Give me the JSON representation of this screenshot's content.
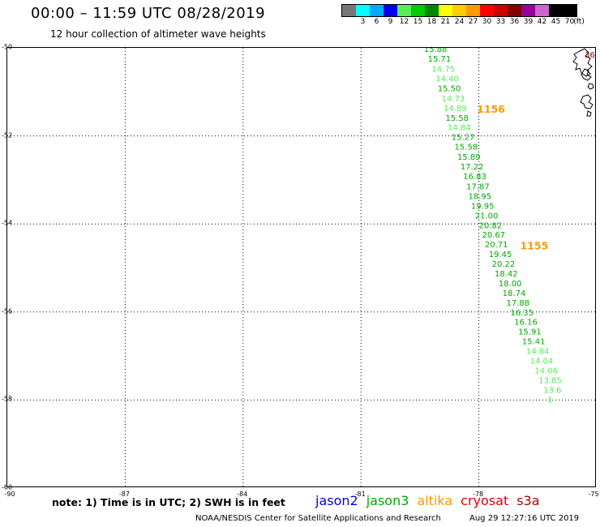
{
  "header": {
    "title": "00:00 – 11:59 UTC 08/28/2019",
    "subtitle": "12 hour collection of altimeter wave heights"
  },
  "legend": {
    "unit": "(ft)",
    "items": [
      {
        "label": "",
        "color": "#777777"
      },
      {
        "label": "3",
        "color": "#00ffff"
      },
      {
        "label": "6",
        "color": "#00aaff"
      },
      {
        "label": "9",
        "color": "#0000ee"
      },
      {
        "label": "12",
        "color": "#55ee55"
      },
      {
        "label": "15",
        "color": "#00cc00"
      },
      {
        "label": "18",
        "color": "#008800"
      },
      {
        "label": "21",
        "color": "#ffff00"
      },
      {
        "label": "24",
        "color": "#ffcc00"
      },
      {
        "label": "27",
        "color": "#ff9900"
      },
      {
        "label": "30",
        "color": "#ff0000"
      },
      {
        "label": "33",
        "color": "#cc0000"
      },
      {
        "label": "36",
        "color": "#880000"
      },
      {
        "label": "39",
        "color": "#990099"
      },
      {
        "label": "42",
        "color": "#cc66cc"
      },
      {
        "label": "45",
        "color": "#000000"
      },
      {
        "label": "70",
        "color": "#000000"
      }
    ]
  },
  "axes": {
    "lat_labels": [
      "-50",
      "-52",
      "-54",
      "-56",
      "-58",
      "-60"
    ],
    "lon_labels": [
      "-90",
      "-87",
      "-84",
      "-81",
      "-78",
      "-75"
    ]
  },
  "map": {
    "lon_range": [
      -90,
      -75
    ],
    "lat_range": [
      -60,
      -50
    ],
    "track_color": "#00aa00",
    "light_track_color": "#55ee55",
    "pass_time_color": "#ff9900",
    "edge_label": "36"
  },
  "observations": [
    {
      "value": "15.88",
      "lon": -79.4,
      "lat": -50.02,
      "shade": "dark"
    },
    {
      "value": "15.71",
      "lon": -79.3,
      "lat": -50.24,
      "shade": "dark"
    },
    {
      "value": "14.75",
      "lon": -79.2,
      "lat": -50.47,
      "shade": "light"
    },
    {
      "value": "14.40",
      "lon": -79.1,
      "lat": -50.69,
      "shade": "light"
    },
    {
      "value": "15.50",
      "lon": -79.05,
      "lat": -50.91,
      "shade": "dark"
    },
    {
      "value": "14.73",
      "lon": -78.95,
      "lat": -51.14,
      "shade": "light"
    },
    {
      "value": "14.89",
      "lon": -78.9,
      "lat": -51.36,
      "shade": "light"
    },
    {
      "value": "15.58",
      "lon": -78.85,
      "lat": -51.58,
      "shade": "dark"
    },
    {
      "value": "14.84",
      "lon": -78.8,
      "lat": -51.8,
      "shade": "light"
    },
    {
      "value": "15.27",
      "lon": -78.7,
      "lat": -52.02,
      "shade": "dark"
    },
    {
      "value": "15.58",
      "lon": -78.62,
      "lat": -52.24,
      "shade": "dark"
    },
    {
      "value": "15.89",
      "lon": -78.55,
      "lat": -52.47,
      "shade": "dark"
    },
    {
      "value": "17.22",
      "lon": -78.47,
      "lat": -52.69,
      "shade": "dark"
    },
    {
      "value": "16.83",
      "lon": -78.4,
      "lat": -52.91,
      "shade": "dark"
    },
    {
      "value": "17.87",
      "lon": -78.32,
      "lat": -53.14,
      "shade": "dark"
    },
    {
      "value": "18.95",
      "lon": -78.27,
      "lat": -53.36,
      "shade": "dark"
    },
    {
      "value": "19.95",
      "lon": -78.2,
      "lat": -53.58,
      "shade": "dark"
    },
    {
      "value": "21.00",
      "lon": -78.1,
      "lat": -53.8,
      "shade": "dark"
    },
    {
      "value": "20.82",
      "lon": -78.0,
      "lat": -54.02,
      "shade": "dark"
    },
    {
      "value": "20.67",
      "lon": -77.92,
      "lat": -54.24,
      "shade": "dark"
    },
    {
      "value": "20.71",
      "lon": -77.85,
      "lat": -54.46,
      "shade": "dark"
    },
    {
      "value": "19.45",
      "lon": -77.75,
      "lat": -54.68,
      "shade": "dark"
    },
    {
      "value": "20.22",
      "lon": -77.67,
      "lat": -54.9,
      "shade": "dark"
    },
    {
      "value": "18.42",
      "lon": -77.6,
      "lat": -55.12,
      "shade": "dark"
    },
    {
      "value": "18.00",
      "lon": -77.5,
      "lat": -55.34,
      "shade": "dark"
    },
    {
      "value": "18.74",
      "lon": -77.4,
      "lat": -55.56,
      "shade": "dark"
    },
    {
      "value": "17.88",
      "lon": -77.3,
      "lat": -55.78,
      "shade": "dark"
    },
    {
      "value": "16.35",
      "lon": -77.2,
      "lat": -56.0,
      "shade": "dark"
    },
    {
      "value": "16.16",
      "lon": -77.1,
      "lat": -56.22,
      "shade": "dark"
    },
    {
      "value": "15.91",
      "lon": -77.0,
      "lat": -56.44,
      "shade": "dark"
    },
    {
      "value": "15.41",
      "lon": -76.9,
      "lat": -56.66,
      "shade": "dark"
    },
    {
      "value": "14.84",
      "lon": -76.8,
      "lat": -56.88,
      "shade": "light"
    },
    {
      "value": "14.04",
      "lon": -76.7,
      "lat": -57.1,
      "shade": "light"
    },
    {
      "value": "14.06",
      "lon": -76.58,
      "lat": -57.32,
      "shade": "light"
    },
    {
      "value": "13.85",
      "lon": -76.48,
      "lat": -57.54,
      "shade": "light"
    },
    {
      "value": "13.6",
      "lon": -76.36,
      "lat": -57.76,
      "shade": "light"
    },
    {
      "value": "1",
      "lon": -76.25,
      "lat": -57.98,
      "shade": "light"
    }
  ],
  "pass_times": [
    {
      "label": "1156",
      "lon": -78.05,
      "lat": -51.38
    },
    {
      "label": "1155",
      "lon": -76.95,
      "lat": -54.48
    }
  ],
  "footer": {
    "note": "note: 1) Time is in UTC; 2) SWH is in feet",
    "satellites": [
      {
        "name": "jason2",
        "color": "#0000dd"
      },
      {
        "name": "jason3",
        "color": "#00aa00"
      },
      {
        "name": "altika",
        "color": "#ff9900"
      },
      {
        "name": "cryosat",
        "color": "#dd0000"
      },
      {
        "name": "s3a",
        "color": "#aa0000"
      }
    ],
    "credit": "NOAA/NESDIS Center for Satellite Applications and Research",
    "timestamp": "Aug 29 12:27:16 UTC 2019"
  }
}
